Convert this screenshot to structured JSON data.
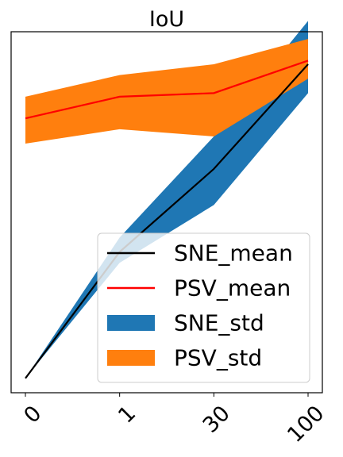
{
  "chart_data": {
    "type": "line",
    "title": "IoU",
    "xlabel": "",
    "ylabel": "",
    "categories": [
      "0",
      "1",
      "30",
      "100"
    ],
    "ylim": [
      0.0,
      1.0
    ],
    "y_ticks_visible": false,
    "grid": false,
    "legend_position": "lower-right",
    "series": [
      {
        "name": "SNE_mean",
        "kind": "line",
        "color": "#000000",
        "values": [
          0.04,
          0.39,
          0.62,
          0.91
        ]
      },
      {
        "name": "PSV_mean",
        "kind": "line",
        "color": "#ff0000",
        "values": [
          0.76,
          0.82,
          0.83,
          0.92
        ]
      },
      {
        "name": "SNE_std",
        "kind": "band",
        "color": "#1f77b4",
        "lower": [
          0.04,
          0.36,
          0.52,
          0.83
        ],
        "upper": [
          0.04,
          0.43,
          0.71,
          1.03
        ]
      },
      {
        "name": "PSV_std",
        "kind": "band",
        "color": "#ff7f0e",
        "lower": [
          0.69,
          0.73,
          0.71,
          0.87
        ],
        "upper": [
          0.82,
          0.88,
          0.91,
          0.98
        ]
      }
    ],
    "legend": [
      {
        "label": "SNE_mean",
        "kind": "line",
        "color": "#000000"
      },
      {
        "label": "PSV_mean",
        "kind": "line",
        "color": "#ff0000"
      },
      {
        "label": "SNE_std",
        "kind": "patch",
        "color": "#1f77b4"
      },
      {
        "label": "PSV_std",
        "kind": "patch",
        "color": "#ff7f0e"
      }
    ]
  }
}
